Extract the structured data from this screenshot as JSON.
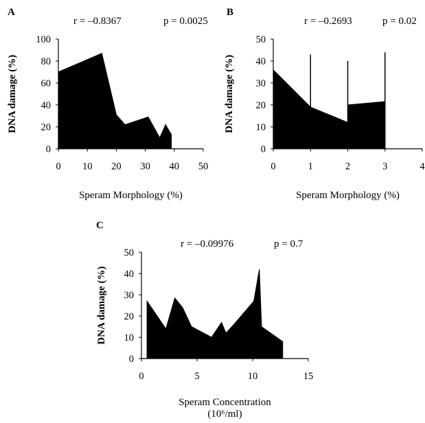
{
  "chart_data": [
    {
      "type": "area",
      "panel_label": "A",
      "stats": {
        "r": "r = –0.8367",
        "p": "p = 0.0025"
      },
      "xlabel": "Speram Morphology (%)",
      "xlabel_line2": "",
      "ylabel": "DNA damage (%)",
      "xlim": [
        0,
        50
      ],
      "ylim": [
        0,
        100
      ],
      "xticks": [
        0,
        10,
        20,
        30,
        40,
        50
      ],
      "yticks": [
        0,
        20,
        40,
        60,
        80,
        100
      ],
      "x": [
        0,
        15,
        20,
        23,
        31,
        35,
        37,
        39,
        39
      ],
      "y": [
        70,
        87,
        31,
        22,
        29,
        10,
        22,
        13,
        0
      ],
      "spikes": []
    },
    {
      "type": "area",
      "panel_label": "B",
      "stats": {
        "r": "r = –0.2693",
        "p": "p = 0.02"
      },
      "xlabel": "Speram Morphology (%)",
      "xlabel_line2": "",
      "ylabel": "DNA damage (%)",
      "xlim": [
        0,
        4
      ],
      "ylim": [
        0,
        50
      ],
      "xticks": [
        0,
        1,
        2,
        3,
        4
      ],
      "yticks": [
        0,
        10,
        20,
        30,
        40,
        50
      ],
      "x": [
        0,
        1,
        2,
        2,
        3,
        3
      ],
      "y": [
        36,
        19,
        12,
        20,
        21.5,
        4
      ],
      "spikes": [
        {
          "x": 1,
          "y": 43
        },
        {
          "x": 2,
          "y": 40
        },
        {
          "x": 3,
          "y": 44
        }
      ]
    },
    {
      "type": "area",
      "panel_label": "C",
      "stats": {
        "r": "r = –0.09976",
        "p": "p = 0.7"
      },
      "xlabel": "Speram Concentration",
      "xlabel_line2": "(10⁶/ml)",
      "ylabel": "DNA damage (%)",
      "xlim": [
        0,
        15
      ],
      "ylim": [
        0,
        50
      ],
      "xticks": [
        0,
        5,
        10,
        15
      ],
      "yticks": [
        0,
        10,
        20,
        30,
        40,
        50
      ],
      "x": [
        0.5,
        2.2,
        3,
        3.7,
        4.5,
        6.3,
        7.2,
        7.6,
        8.3,
        10.1,
        10.6,
        10.8,
        12.7,
        12.7
      ],
      "y": [
        27,
        14,
        28.5,
        24,
        15,
        10,
        17,
        12,
        16,
        27,
        42,
        15,
        8,
        0
      ],
      "spikes": []
    }
  ]
}
